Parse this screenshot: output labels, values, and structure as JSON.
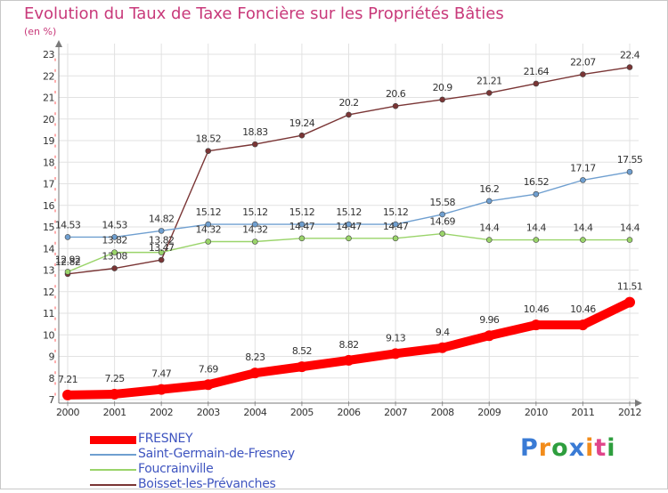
{
  "title": "Evolution du Taux de Taxe Foncière sur les Propriétés Bâties",
  "unit_label": "(en %)",
  "logo_text": "Proxiti",
  "logo_colors": [
    "#3a7bd5",
    "#f28c1b",
    "#2e9e3e",
    "#3a7bd5",
    "#f28c1b",
    "#e0458a",
    "#2e9e3e"
  ],
  "chart_data": {
    "type": "line",
    "title": "Evolution du Taux de Taxe Foncière sur les Propriétés Bâties",
    "ylabel": "(en %)",
    "xlabel": "",
    "ylim": [
      7,
      23
    ],
    "yticks": [
      7,
      8,
      9,
      10,
      11,
      12,
      13,
      14,
      15,
      16,
      17,
      18,
      19,
      20,
      21,
      22,
      23
    ],
    "grid": true,
    "legend_position": "bottom-left",
    "x": [
      "2000",
      "2001",
      "2002",
      "2003",
      "2004",
      "2005",
      "2006",
      "2007",
      "2008",
      "2009",
      "2010",
      "2011",
      "2012"
    ],
    "series": [
      {
        "name": "FRESNEY",
        "color": "#ff0000",
        "values": [
          7.21,
          7.25,
          7.47,
          7.69,
          8.23,
          8.52,
          8.82,
          9.13,
          9.4,
          9.96,
          10.46,
          10.46,
          11.51
        ],
        "labels": [
          "7.21",
          "7.25",
          "7.47",
          "7.69",
          "8.23",
          "8.52",
          "8.82",
          "9.13",
          "9.4",
          "9.96",
          "10.46",
          "10.46",
          "11.51"
        ]
      },
      {
        "name": "Saint-Germain-de-Fresney",
        "color": "#6f9fd0",
        "values": [
          14.53,
          14.53,
          14.82,
          15.12,
          15.12,
          15.12,
          15.12,
          15.12,
          15.58,
          16.2,
          16.52,
          17.17,
          17.55
        ],
        "labels": [
          "14.53",
          "14.53",
          "14.82",
          "15.12",
          "15.12",
          "15.12",
          "15.12",
          "15.12",
          "15.58",
          "16.2",
          "16.52",
          "17.17",
          "17.55"
        ]
      },
      {
        "name": "Foucrainville",
        "color": "#9ad46a",
        "values": [
          12.92,
          13.82,
          13.82,
          14.32,
          14.32,
          14.47,
          14.47,
          14.47,
          14.69,
          14.4,
          14.4,
          14.4,
          14.4
        ],
        "labels": [
          "12.92",
          "13.82",
          "13.82",
          "14.32",
          "14.32",
          "14.47",
          "14.47",
          "14.47",
          "14.69",
          "14.4",
          "14.4",
          "14.4",
          "14.4"
        ]
      },
      {
        "name": "Boisset-les-Prévanches",
        "color": "#7a3535",
        "values": [
          12.82,
          13.08,
          13.47,
          18.52,
          18.83,
          19.24,
          20.2,
          20.6,
          20.9,
          21.21,
          21.64,
          22.07,
          22.4
        ],
        "labels": [
          "12.82",
          "13.08",
          "13.47",
          "18.52",
          "18.83",
          "19.24",
          "20.2",
          "20.6",
          "20.9",
          "21.21",
          "21.64",
          "22.07",
          "22.4"
        ]
      }
    ]
  }
}
